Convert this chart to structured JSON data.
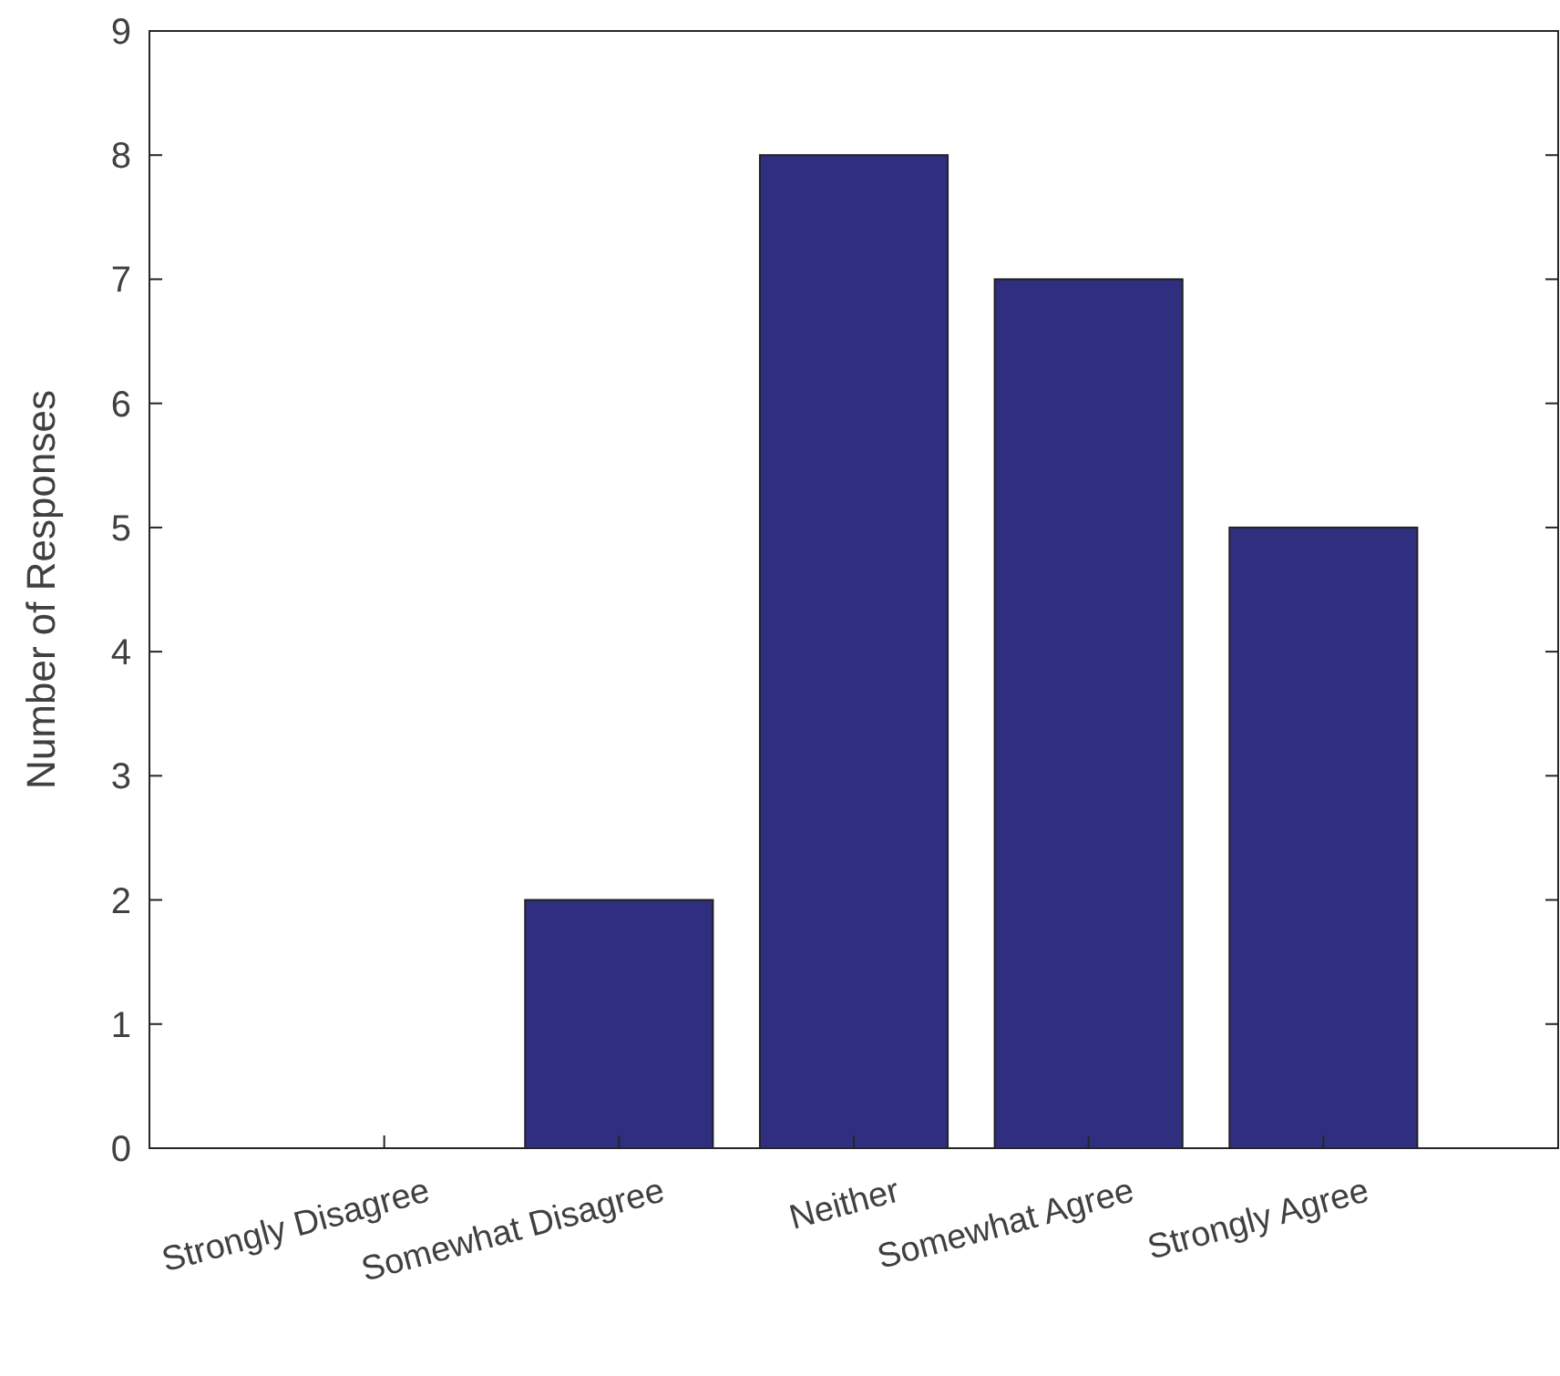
{
  "chart_data": {
    "type": "bar",
    "ylabel": "Number of Responses",
    "categories": [
      "Strongly Disagree",
      "Somewhat Disagree",
      "Neither",
      "Somewhat Agree",
      "Strongly Agree"
    ],
    "values": [
      0,
      2,
      8,
      7,
      5
    ],
    "color": "#302f7f",
    "ylim": [
      0,
      9
    ],
    "yticks": [
      0,
      1,
      2,
      3,
      4,
      5,
      6,
      7,
      8,
      9
    ],
    "grid": false
  }
}
